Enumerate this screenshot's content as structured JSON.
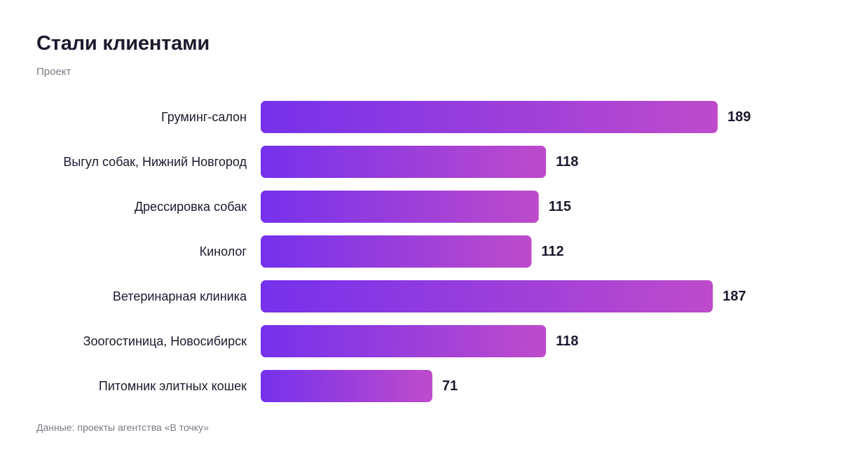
{
  "header": {
    "title": "Стали клиентами",
    "subtitle": "Проект"
  },
  "footer": {
    "source": "Данные: проекты агентства «В точку»"
  },
  "colors": {
    "bar_start": "#7531ec",
    "bar_end": "#be4bcb",
    "text": "#1c1a2e",
    "muted": "#7b7986"
  },
  "chart_data": {
    "type": "bar",
    "orientation": "horizontal",
    "title": "Стали клиентами",
    "subtitle": "Проект",
    "categories": [
      "Груминг-салон",
      "Выгул собак, Нижний Новгород",
      "Дрессировка собак",
      "Кинолог",
      "Ветеринарная клиника",
      "Зоогостиница, Новосибирск",
      "Питомник элитных кошек"
    ],
    "values": [
      189,
      118,
      115,
      112,
      187,
      118,
      71
    ],
    "xlim": [
      0,
      189
    ],
    "grid": false,
    "legend": "none",
    "data_labels": true
  }
}
